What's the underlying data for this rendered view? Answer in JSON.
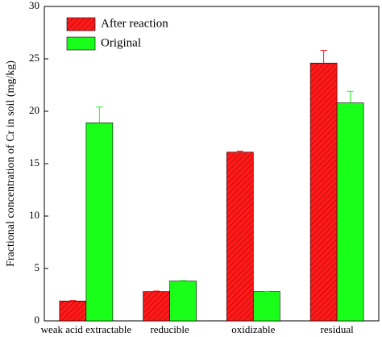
{
  "chart_data": {
    "type": "bar",
    "y_label": "Fractional concentration of Cr in soil (mg/kg)",
    "categories": [
      "weak acid extractable",
      "reducible",
      "oxidizable",
      "residual"
    ],
    "series": [
      {
        "name": "After reaction",
        "color": "#ff1a1a",
        "hatch": true,
        "values": [
          1.9,
          2.8,
          16.1,
          24.6
        ],
        "errors": [
          0.05,
          0.05,
          0.1,
          1.2
        ]
      },
      {
        "name": "Original",
        "color": "#1aff1a",
        "hatch": false,
        "values": [
          18.9,
          3.8,
          2.8,
          20.8
        ],
        "errors": [
          1.5,
          0.05,
          0.02,
          1.1
        ]
      }
    ],
    "ylim": [
      0,
      30
    ],
    "yticks": [
      0,
      5,
      10,
      15,
      20,
      25,
      30
    ],
    "legend": "upper left"
  }
}
